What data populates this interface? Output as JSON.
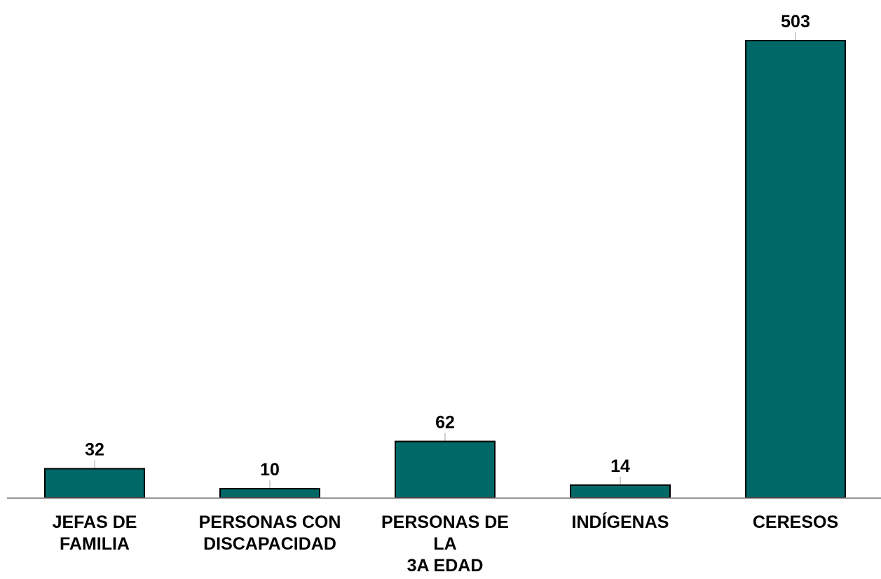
{
  "chart_data": {
    "type": "bar",
    "categories": [
      [
        "JEFAS DE",
        "FAMILIA"
      ],
      [
        "PERSONAS CON",
        "DISCAPACIDAD"
      ],
      [
        "PERSONAS DE",
        "LA",
        "3A EDAD"
      ],
      [
        "INDÍGENAS"
      ],
      [
        "CERESOS"
      ]
    ],
    "values": [
      32,
      10,
      62,
      14,
      503
    ],
    "data_labels": [
      "32",
      "10",
      "62",
      "14",
      "503"
    ],
    "ylim": [
      0,
      503
    ],
    "grid": false,
    "legend": "none",
    "bar_color": "#006866",
    "bar_stroke": "#000000",
    "axis_color": "#808080"
  }
}
